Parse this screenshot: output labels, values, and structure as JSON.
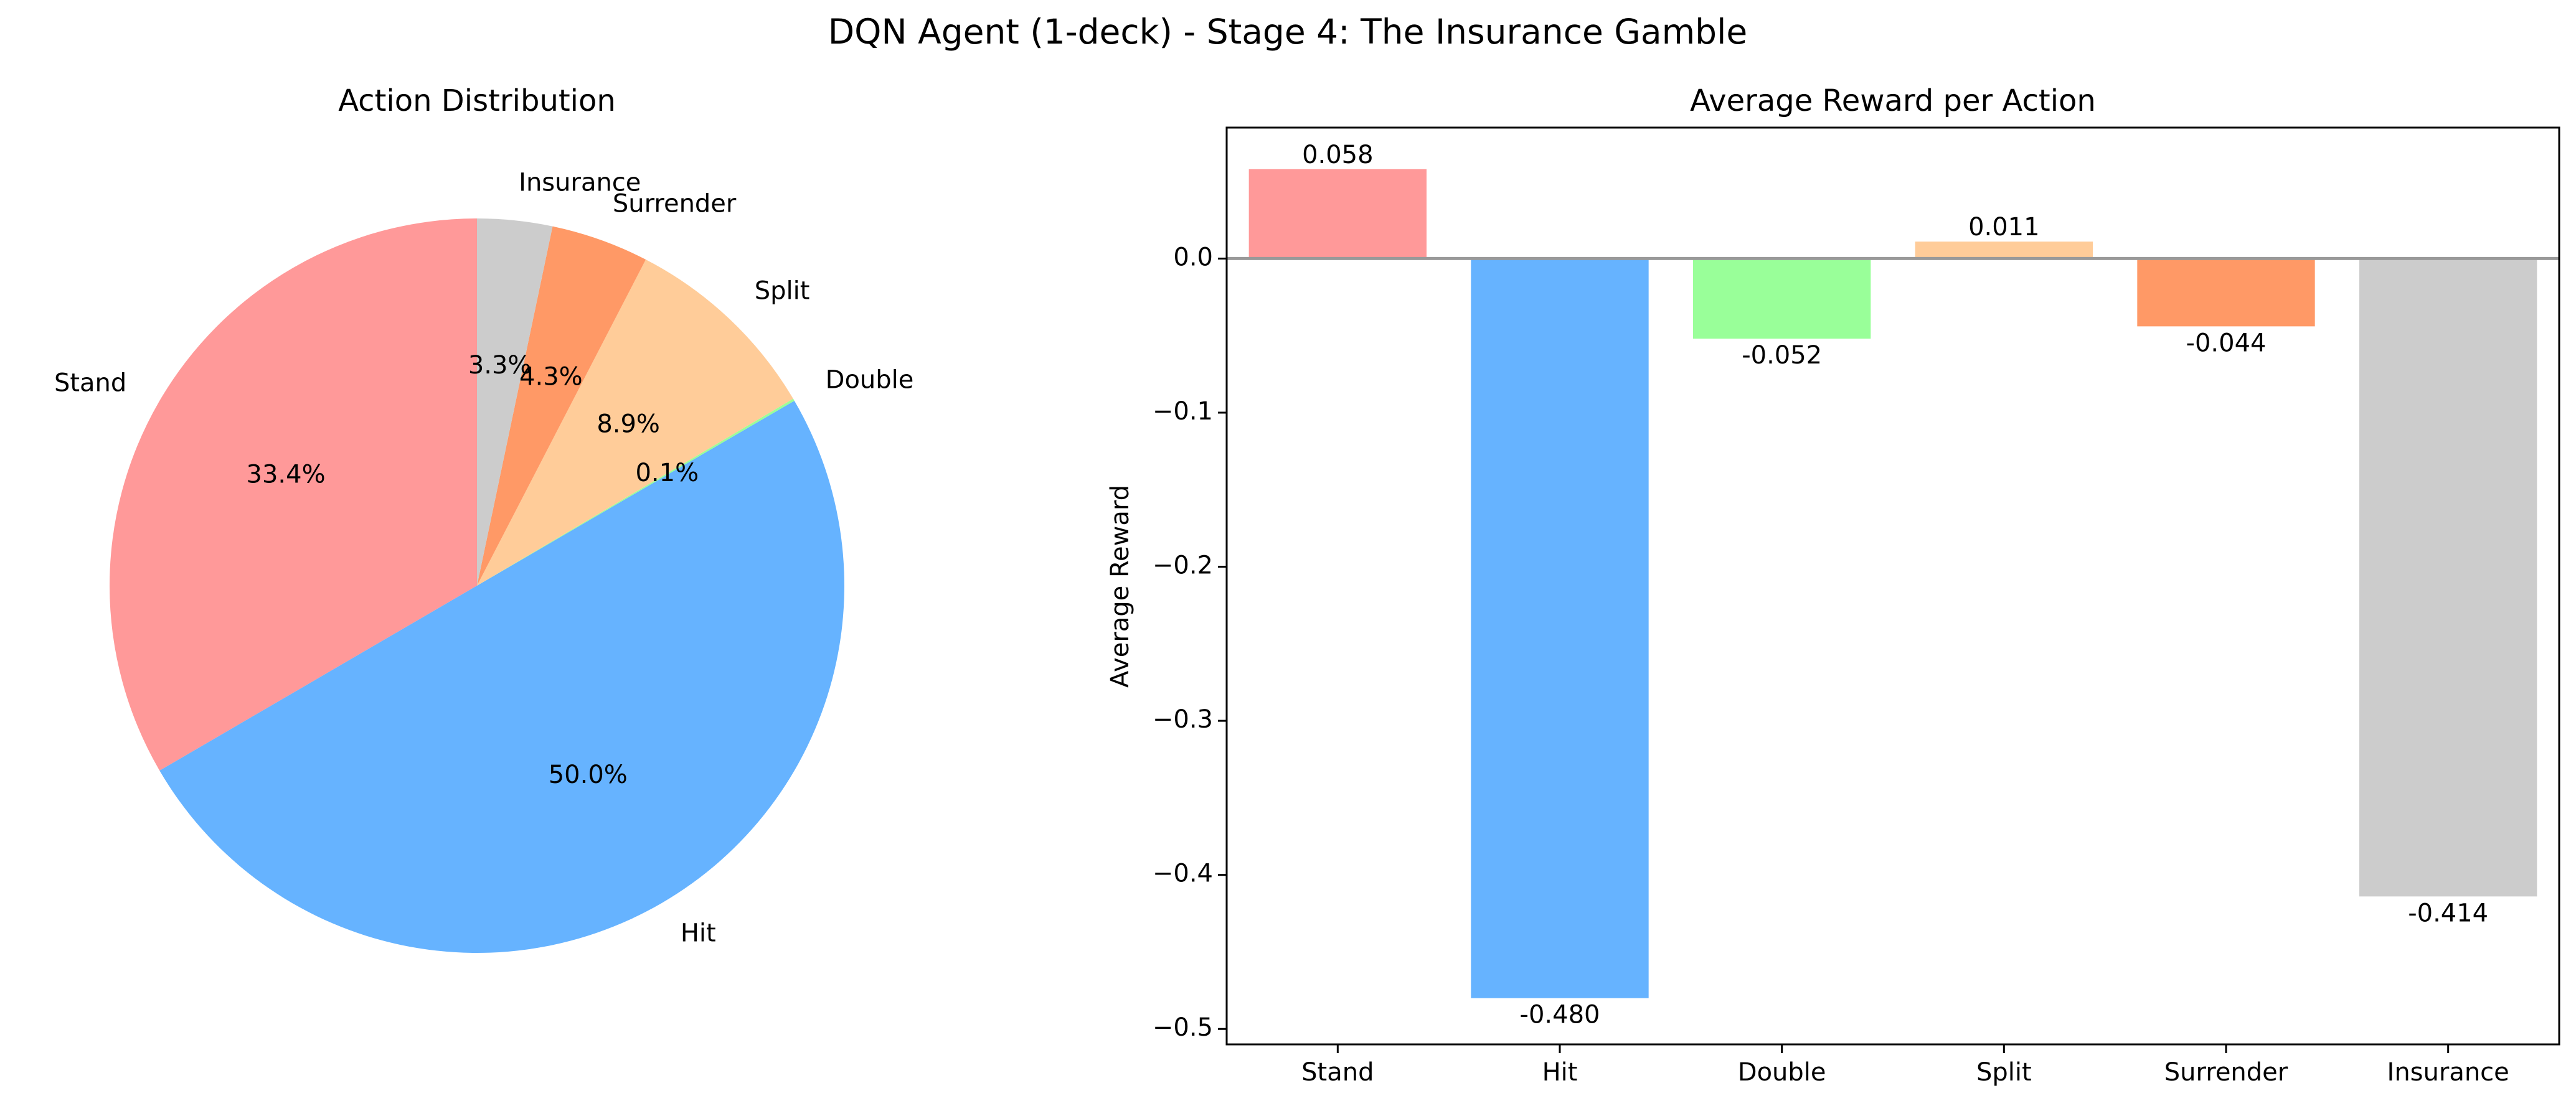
{
  "figure": {
    "title": "DQN Agent (1-deck) - Stage 4: The Insurance Gamble"
  },
  "chart_data": [
    {
      "type": "pie",
      "title": "Action Distribution",
      "start_angle_deg": 90,
      "direction": "counterclockwise",
      "slices": [
        {
          "label": "Stand",
          "value": 33.4,
          "pct_label": "33.4%",
          "color": "#ff9999"
        },
        {
          "label": "Hit",
          "value": 50.0,
          "pct_label": "50.0%",
          "color": "#66b3ff"
        },
        {
          "label": "Double",
          "value": 0.1,
          "pct_label": "0.1%",
          "color": "#99ff99"
        },
        {
          "label": "Split",
          "value": 8.9,
          "pct_label": "8.9%",
          "color": "#ffcc99"
        },
        {
          "label": "Surrender",
          "value": 4.3,
          "pct_label": "4.3%",
          "color": "#ff9966"
        },
        {
          "label": "Insurance",
          "value": 3.3,
          "pct_label": "3.3%",
          "color": "#cccccc"
        }
      ]
    },
    {
      "type": "bar",
      "title": "Average Reward per Action",
      "xlabel": "",
      "ylabel": "Average Reward",
      "ylim": [
        -0.51,
        0.085
      ],
      "yticks": [
        0.0,
        -0.1,
        -0.2,
        -0.3,
        -0.4,
        -0.5
      ],
      "ytick_labels": [
        "0.0",
        "−0.1",
        "−0.2",
        "−0.3",
        "−0.4",
        "−0.5"
      ],
      "zero_line": true,
      "categories": [
        "Stand",
        "Hit",
        "Double",
        "Split",
        "Surrender",
        "Insurance"
      ],
      "values": [
        0.058,
        -0.48,
        -0.052,
        0.011,
        -0.044,
        -0.414
      ],
      "value_labels": [
        "0.058",
        "-0.480",
        "-0.052",
        "0.011",
        "-0.044",
        "-0.414"
      ],
      "colors": [
        "#ff9999",
        "#66b3ff",
        "#99ff99",
        "#ffcc99",
        "#ff9966",
        "#cccccc"
      ]
    }
  ]
}
